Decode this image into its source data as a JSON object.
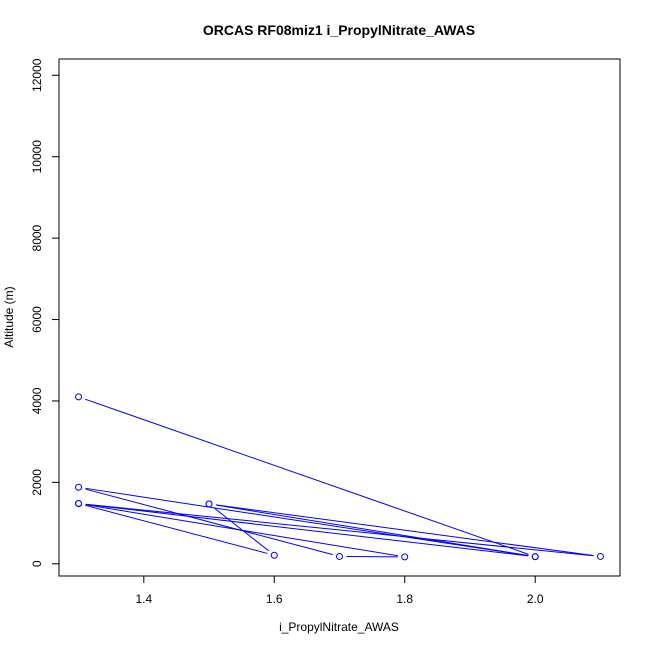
{
  "chart_data": {
    "type": "line",
    "title": "ORCAS RF08miz1 i_PropylNitrate_AWAS",
    "xlabel": "i_PropylNitrate_AWAS",
    "ylabel": "Altitude (m)",
    "xlim": [
      1.27,
      2.13
    ],
    "ylim": [
      -300,
      12400
    ],
    "x_ticks": [
      1.4,
      1.6,
      1.8,
      2.0
    ],
    "x_tick_labels": [
      "1.4",
      "1.6",
      "1.8",
      "2.0"
    ],
    "y_ticks": [
      0,
      2000,
      4000,
      6000,
      8000,
      10000,
      12000
    ],
    "y_tick_labels": [
      "0",
      "2000",
      "4000",
      "6000",
      "8000",
      "10000",
      "12000"
    ],
    "grid": false,
    "series": [
      {
        "color": "#0000ff",
        "marker": "open-circle",
        "points": [
          {
            "x": 1.3,
            "y": 4100
          },
          {
            "x": 2.0,
            "y": 175
          },
          {
            "x": 1.3,
            "y": 1480
          },
          {
            "x": 1.8,
            "y": 170
          },
          {
            "x": 1.7,
            "y": 180
          },
          {
            "x": 1.3,
            "y": 1880
          },
          {
            "x": 2.0,
            "y": 175
          },
          {
            "x": 1.5,
            "y": 1470
          },
          {
            "x": 2.1,
            "y": 180
          },
          {
            "x": 1.3,
            "y": 1480
          },
          {
            "x": 1.6,
            "y": 210
          },
          {
            "x": 1.5,
            "y": 1470
          }
        ]
      }
    ]
  }
}
